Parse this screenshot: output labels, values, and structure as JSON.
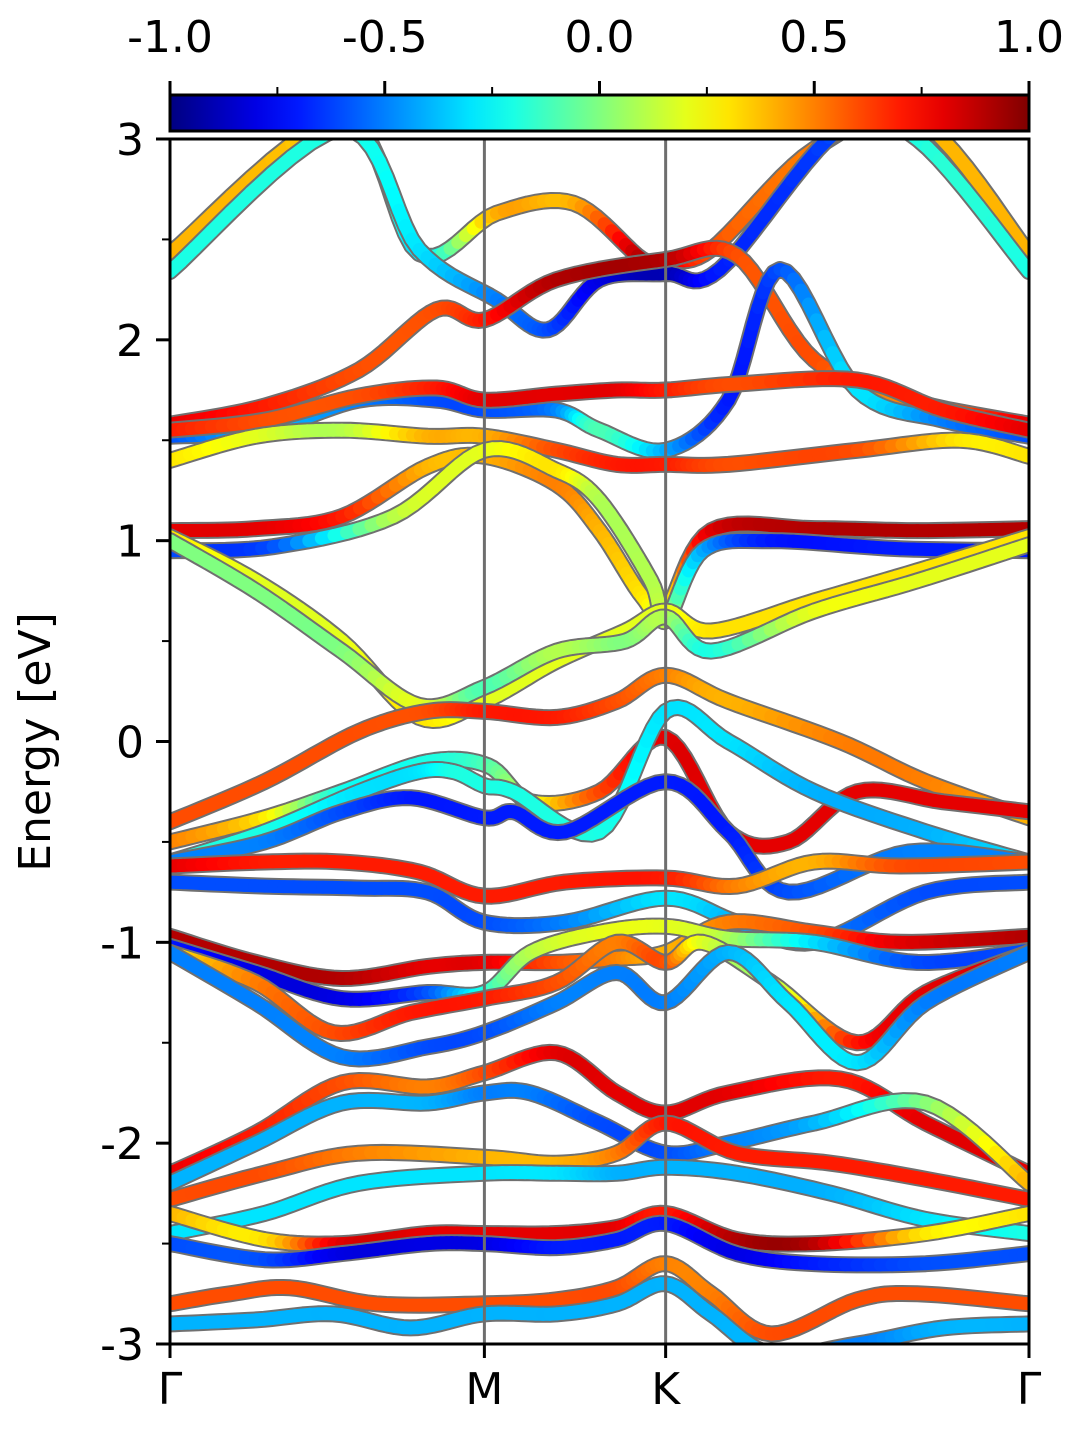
{
  "chart_data": {
    "type": "line",
    "xlabel": "",
    "ylabel": "Energy [eV]",
    "ylim": [
      -3,
      3
    ],
    "y_ticks": [
      3,
      2,
      1,
      0,
      -1,
      -2,
      -3
    ],
    "y_tick_labels": [
      "3",
      "2",
      "1",
      "0",
      "-1",
      "-2",
      "-3"
    ],
    "k_path": [
      "Γ",
      "M",
      "K",
      "Γ"
    ],
    "k_path_positions": [
      0,
      0.366,
      0.577,
      1
    ],
    "colorbar": {
      "ticks": [
        -1.0,
        -0.5,
        0.0,
        0.5,
        1.0
      ],
      "tick_labels": [
        "-1.0",
        "-0.5",
        "0.0",
        "0.5",
        "1.0"
      ],
      "range": [
        -1.0,
        1.0
      ],
      "colormap": "jet"
    },
    "grid": false,
    "series": [
      {
        "x": [
          0,
          0.2,
          0.29,
          0.38,
          0.47,
          0.55,
          0.577,
          0.63,
          0.75,
          0.87,
          1
        ],
        "y": [
          2.43,
          3.1,
          2.43,
          2.63,
          2.68,
          2.4,
          2.4,
          2.45,
          2.95,
          3.1,
          2.43
        ],
        "c": [
          0.4,
          0.3,
          -0.3,
          0.4,
          0.4,
          0.9,
          0.9,
          0.6,
          0.5,
          0.4,
          0.4
        ]
      },
      {
        "x": [
          0,
          0.2,
          0.29,
          0.38,
          0.44,
          0.5,
          0.577,
          0.64,
          0.78,
          0.87,
          1
        ],
        "y": [
          2.34,
          3.05,
          2.45,
          2.2,
          2.05,
          2.3,
          2.33,
          2.35,
          3.05,
          3.0,
          2.34
        ],
        "c": [
          -0.2,
          -0.2,
          -0.3,
          -0.5,
          -0.6,
          -0.8,
          -0.9,
          -0.7,
          -0.6,
          -0.2,
          -0.2
        ]
      },
      {
        "x": [
          0,
          0.11,
          0.22,
          0.31,
          0.366,
          0.45,
          0.577,
          0.66,
          0.75,
          0.86,
          1
        ],
        "y": [
          1.58,
          1.67,
          1.85,
          2.15,
          2.1,
          2.3,
          2.4,
          2.42,
          1.9,
          1.7,
          1.58
        ],
        "c": [
          0.8,
          0.7,
          0.6,
          0.6,
          0.7,
          0.9,
          0.9,
          0.6,
          0.6,
          0.5,
          0.8
        ]
      },
      {
        "x": [
          0,
          0.11,
          0.22,
          0.31,
          0.366,
          0.45,
          0.5,
          0.577,
          0.65,
          0.71,
          0.8,
          0.9,
          1
        ],
        "y": [
          1.52,
          1.55,
          1.7,
          1.7,
          1.65,
          1.65,
          1.55,
          1.45,
          1.7,
          2.35,
          1.75,
          1.6,
          1.52
        ],
        "c": [
          -0.6,
          -0.4,
          -0.5,
          -0.6,
          -0.6,
          -0.5,
          -0.1,
          -0.4,
          -0.7,
          -0.6,
          -0.3,
          -0.5,
          -0.6
        ]
      },
      {
        "x": [
          0,
          0.11,
          0.22,
          0.31,
          0.366,
          0.45,
          0.52,
          0.577,
          0.66,
          0.8,
          0.9,
          1
        ],
        "y": [
          1.55,
          1.6,
          1.72,
          1.76,
          1.7,
          1.73,
          1.75,
          1.75,
          1.78,
          1.8,
          1.65,
          1.55
        ],
        "c": [
          0.7,
          0.6,
          0.6,
          0.7,
          0.8,
          0.8,
          0.8,
          0.7,
          0.6,
          0.7,
          0.7,
          0.8
        ]
      },
      {
        "x": [
          0,
          0.1,
          0.2,
          0.3,
          0.366,
          0.45,
          0.52,
          0.577,
          0.65,
          0.8,
          0.92,
          1
        ],
        "y": [
          1.4,
          1.52,
          1.55,
          1.52,
          1.52,
          1.45,
          1.38,
          1.38,
          1.38,
          1.45,
          1.5,
          1.42
        ],
        "c": [
          0.3,
          0.2,
          0.1,
          0.4,
          0.4,
          0.6,
          0.7,
          0.7,
          0.6,
          0.6,
          0.3,
          0.3
        ]
      },
      {
        "x": [
          0,
          0.1,
          0.2,
          0.3,
          0.366,
          0.45,
          0.5,
          0.55,
          0.577,
          0.63,
          0.75,
          0.87,
          1
        ],
        "y": [
          1.05,
          1.06,
          1.12,
          1.37,
          1.42,
          1.28,
          1.05,
          0.72,
          0.65,
          1.05,
          1.06,
          1.05,
          1.06
        ],
        "c": [
          0.8,
          0.8,
          0.7,
          0.4,
          0.4,
          0.5,
          0.4,
          0.3,
          0.2,
          0.8,
          0.9,
          0.9,
          0.9
        ]
      },
      {
        "x": [
          0,
          0.12,
          0.26,
          0.366,
          0.45,
          0.5,
          0.56,
          0.577,
          0.62,
          0.7,
          0.85,
          1
        ],
        "y": [
          0.95,
          0.97,
          1.12,
          1.45,
          1.35,
          1.2,
          0.8,
          0.6,
          0.95,
          1.0,
          0.96,
          0.95
        ],
        "c": [
          -0.6,
          -0.6,
          0.1,
          0.2,
          0.3,
          0.1,
          0.1,
          0.1,
          -0.4,
          -0.7,
          -0.7,
          -0.7
        ]
      },
      {
        "x": [
          0,
          0.1,
          0.2,
          0.29,
          0.366,
          0.45,
          0.53,
          0.577,
          0.63,
          0.75,
          0.87,
          1
        ],
        "y": [
          1.02,
          0.8,
          0.5,
          0.12,
          0.2,
          0.4,
          0.55,
          0.65,
          0.55,
          0.7,
          0.85,
          1.02
        ],
        "c": [
          0.3,
          0.2,
          0.2,
          0.3,
          0.2,
          0.2,
          0.2,
          0.2,
          0.3,
          0.3,
          0.3,
          0.3
        ]
      },
      {
        "x": [
          0,
          0.1,
          0.2,
          0.29,
          0.366,
          0.45,
          0.53,
          0.577,
          0.63,
          0.75,
          0.87,
          1
        ],
        "y": [
          1.0,
          0.75,
          0.45,
          0.18,
          0.27,
          0.45,
          0.5,
          0.62,
          0.45,
          0.65,
          0.8,
          0.98
        ],
        "c": [
          0.0,
          0.0,
          0.0,
          0.2,
          -0.1,
          0.1,
          0.0,
          0.1,
          -0.2,
          0.2,
          0.2,
          0.2
        ]
      },
      {
        "x": [
          0,
          0.11,
          0.22,
          0.3,
          0.366,
          0.45,
          0.52,
          0.577,
          0.65,
          0.78,
          0.88,
          1
        ],
        "y": [
          -0.4,
          -0.2,
          0.05,
          0.15,
          0.15,
          0.12,
          0.2,
          0.33,
          0.2,
          0.0,
          -0.2,
          -0.38
        ],
        "c": [
          0.6,
          0.6,
          0.6,
          0.6,
          0.7,
          0.7,
          0.6,
          0.5,
          0.4,
          0.5,
          0.5,
          0.4
        ]
      },
      {
        "x": [
          0,
          0.11,
          0.2,
          0.3,
          0.37,
          0.42,
          0.5,
          0.577,
          0.65,
          0.72,
          0.8,
          0.9,
          1
        ],
        "y": [
          -0.5,
          -0.38,
          -0.25,
          -0.1,
          -0.12,
          -0.3,
          -0.25,
          0.02,
          -0.45,
          -0.5,
          -0.25,
          -0.3,
          -0.35
        ],
        "c": [
          0.5,
          0.3,
          -0.2,
          -0.2,
          -0.1,
          0.2,
          0.6,
          0.8,
          0.8,
          0.8,
          0.8,
          0.8,
          0.8
        ]
      },
      {
        "x": [
          0,
          0.11,
          0.22,
          0.29,
          0.33,
          0.366,
          0.4,
          0.5,
          0.577,
          0.65,
          0.75,
          0.88,
          1
        ],
        "y": [
          -0.6,
          -0.45,
          -0.25,
          -0.15,
          -0.15,
          -0.22,
          -0.25,
          -0.45,
          0.15,
          0.0,
          -0.25,
          -0.45,
          -0.6
        ],
        "c": [
          -0.2,
          -0.2,
          -0.3,
          -0.3,
          -0.2,
          -0.2,
          -0.2,
          -0.2,
          -0.3,
          -0.3,
          -0.4,
          -0.4,
          -0.3
        ]
      },
      {
        "x": [
          0,
          0.11,
          0.2,
          0.28,
          0.366,
          0.4,
          0.46,
          0.577,
          0.65,
          0.72,
          0.86,
          1
        ],
        "y": [
          -0.6,
          -0.5,
          -0.35,
          -0.28,
          -0.38,
          -0.35,
          -0.45,
          -0.2,
          -0.45,
          -0.75,
          -0.55,
          -0.6
        ],
        "c": [
          -0.5,
          -0.5,
          -0.6,
          -0.7,
          -0.7,
          -0.7,
          -0.7,
          -0.7,
          -0.7,
          -0.6,
          -0.5,
          -0.5
        ]
      },
      {
        "x": [
          0,
          0.11,
          0.2,
          0.29,
          0.366,
          0.46,
          0.577,
          0.66,
          0.75,
          0.85,
          1
        ],
        "y": [
          -0.62,
          -0.6,
          -0.6,
          -0.65,
          -0.77,
          -0.7,
          -0.68,
          -0.72,
          -0.6,
          -0.62,
          -0.6
        ],
        "c": [
          0.8,
          0.7,
          0.7,
          0.7,
          0.7,
          0.7,
          0.7,
          0.5,
          0.4,
          0.6,
          0.6
        ]
      },
      {
        "x": [
          0,
          0.11,
          0.22,
          0.3,
          0.366,
          0.46,
          0.577,
          0.66,
          0.75,
          0.88,
          1
        ],
        "y": [
          -0.7,
          -0.72,
          -0.73,
          -0.75,
          -0.9,
          -0.9,
          -0.78,
          -0.9,
          -1.0,
          -0.75,
          -0.7
        ],
        "c": [
          -0.6,
          -0.6,
          -0.6,
          -0.6,
          -0.6,
          -0.5,
          -0.3,
          -0.4,
          -0.5,
          -0.6,
          -0.6
        ]
      },
      {
        "x": [
          0,
          0.1,
          0.2,
          0.3,
          0.366,
          0.45,
          0.52,
          0.577,
          0.65,
          0.75,
          0.85,
          1
        ],
        "y": [
          -0.97,
          -1.1,
          -1.18,
          -1.12,
          -1.1,
          -1.1,
          -1.08,
          -1.05,
          -0.9,
          -0.95,
          -1.0,
          -0.97
        ],
        "c": [
          0.9,
          0.9,
          0.9,
          0.8,
          0.8,
          0.6,
          0.5,
          0.4,
          0.5,
          0.6,
          0.8,
          0.9
        ]
      },
      {
        "x": [
          0,
          0.1,
          0.2,
          0.3,
          0.366,
          0.42,
          0.5,
          0.577,
          0.65,
          0.75,
          0.87,
          1
        ],
        "y": [
          -1.02,
          -1.15,
          -1.28,
          -1.25,
          -1.25,
          -1.05,
          -0.95,
          -0.92,
          -0.98,
          -1.0,
          -1.1,
          -1.04
        ],
        "c": [
          -0.7,
          -0.8,
          -0.8,
          -0.6,
          -0.2,
          0.1,
          0.2,
          0.2,
          0.1,
          -0.3,
          -0.6,
          -0.6
        ]
      },
      {
        "x": [
          0,
          0.1,
          0.19,
          0.28,
          0.366,
          0.45,
          0.52,
          0.577,
          0.62,
          0.7,
          0.8,
          0.88,
          1
        ],
        "y": [
          -1.05,
          -1.2,
          -1.45,
          -1.35,
          -1.28,
          -1.2,
          -1.0,
          -1.1,
          -1.0,
          -1.2,
          -1.5,
          -1.25,
          -1.05
        ],
        "c": [
          0.3,
          0.5,
          0.6,
          0.7,
          0.7,
          0.6,
          0.5,
          0.6,
          0.2,
          0.1,
          0.7,
          0.8,
          0.8
        ]
      },
      {
        "x": [
          0,
          0.1,
          0.2,
          0.3,
          0.366,
          0.45,
          0.52,
          0.577,
          0.65,
          0.72,
          0.8,
          0.88,
          1
        ],
        "y": [
          -1.05,
          -1.3,
          -1.57,
          -1.52,
          -1.45,
          -1.3,
          -1.15,
          -1.3,
          -1.05,
          -1.3,
          -1.6,
          -1.3,
          -1.05
        ],
        "c": [
          -0.5,
          -0.5,
          -0.5,
          -0.6,
          -0.6,
          -0.5,
          -0.5,
          -0.5,
          -0.4,
          -0.3,
          -0.3,
          -0.5,
          -0.5
        ]
      },
      {
        "x": [
          0,
          0.1,
          0.2,
          0.3,
          0.366,
          0.45,
          0.52,
          0.577,
          0.65,
          0.78,
          0.88,
          1
        ],
        "y": [
          -2.15,
          -1.95,
          -1.7,
          -1.72,
          -1.65,
          -1.55,
          -1.75,
          -1.85,
          -1.75,
          -1.68,
          -1.9,
          -2.15
        ],
        "c": [
          0.8,
          0.7,
          0.6,
          0.5,
          0.6,
          0.8,
          0.8,
          0.8,
          0.8,
          0.7,
          0.8,
          0.8
        ]
      },
      {
        "x": [
          0,
          0.1,
          0.2,
          0.3,
          0.366,
          0.42,
          0.5,
          0.577,
          0.65,
          0.75,
          0.88,
          1
        ],
        "y": [
          -2.2,
          -2.0,
          -1.8,
          -1.8,
          -1.75,
          -1.75,
          -1.9,
          -2.05,
          -2.0,
          -1.9,
          -1.8,
          -2.2
        ],
        "c": [
          -0.4,
          -0.4,
          -0.4,
          -0.4,
          -0.5,
          -0.5,
          -0.6,
          -0.6,
          -0.5,
          -0.4,
          0.0,
          0.4
        ]
      },
      {
        "x": [
          0,
          0.11,
          0.22,
          0.366,
          0.45,
          0.52,
          0.577,
          0.66,
          0.77,
          0.88,
          1
        ],
        "y": [
          -2.28,
          -2.15,
          -2.05,
          -2.07,
          -2.1,
          -2.05,
          -1.9,
          -2.05,
          -2.1,
          -2.18,
          -2.28
        ],
        "c": [
          0.6,
          0.6,
          0.5,
          0.4,
          0.4,
          0.5,
          0.7,
          0.7,
          0.7,
          0.7,
          0.7
        ]
      },
      {
        "x": [
          0,
          0.11,
          0.22,
          0.366,
          0.45,
          0.52,
          0.577,
          0.66,
          0.77,
          0.88,
          1
        ],
        "y": [
          -2.45,
          -2.35,
          -2.2,
          -2.15,
          -2.15,
          -2.15,
          -2.12,
          -2.15,
          -2.25,
          -2.38,
          -2.45
        ],
        "c": [
          -0.3,
          -0.3,
          -0.3,
          -0.3,
          -0.3,
          -0.4,
          -0.4,
          -0.4,
          -0.4,
          -0.3,
          -0.2
        ]
      },
      {
        "x": [
          0,
          0.11,
          0.2,
          0.3,
          0.366,
          0.45,
          0.52,
          0.577,
          0.66,
          0.75,
          0.88,
          1
        ],
        "y": [
          -2.35,
          -2.48,
          -2.5,
          -2.45,
          -2.45,
          -2.45,
          -2.42,
          -2.35,
          -2.48,
          -2.5,
          -2.45,
          -2.35
        ],
        "c": [
          0.4,
          0.3,
          0.8,
          0.8,
          0.8,
          0.8,
          0.8,
          0.7,
          0.9,
          0.9,
          0.3,
          0.3
        ]
      },
      {
        "x": [
          0,
          0.11,
          0.2,
          0.3,
          0.366,
          0.45,
          0.52,
          0.577,
          0.66,
          0.75,
          0.88,
          1
        ],
        "y": [
          -2.5,
          -2.58,
          -2.55,
          -2.5,
          -2.5,
          -2.52,
          -2.48,
          -2.4,
          -2.55,
          -2.6,
          -2.6,
          -2.55
        ],
        "c": [
          -0.6,
          -0.6,
          -0.8,
          -0.8,
          -0.8,
          -0.7,
          -0.7,
          -0.7,
          -0.8,
          -0.7,
          -0.6,
          -0.6
        ]
      },
      {
        "x": [
          0,
          0.07,
          0.14,
          0.24,
          0.366,
          0.45,
          0.52,
          0.577,
          0.63,
          0.7,
          0.8,
          0.87,
          1
        ],
        "y": [
          -2.8,
          -2.75,
          -2.72,
          -2.8,
          -2.8,
          -2.78,
          -2.72,
          -2.6,
          -2.75,
          -2.95,
          -2.78,
          -2.75,
          -2.8
        ],
        "c": [
          0.6,
          0.6,
          0.6,
          0.6,
          0.6,
          0.6,
          0.6,
          0.5,
          0.5,
          0.6,
          0.6,
          0.6,
          0.6
        ]
      },
      {
        "x": [
          0,
          0.1,
          0.19,
          0.28,
          0.366,
          0.45,
          0.52,
          0.577,
          0.63,
          0.7,
          0.8,
          0.9,
          1
        ],
        "y": [
          -2.9,
          -2.88,
          -2.85,
          -2.92,
          -2.85,
          -2.85,
          -2.8,
          -2.7,
          -2.85,
          -3.05,
          -3.0,
          -2.92,
          -2.9
        ],
        "c": [
          -0.4,
          -0.4,
          -0.4,
          -0.4,
          -0.4,
          -0.4,
          -0.4,
          -0.4,
          -0.4,
          -0.4,
          -0.5,
          -0.4,
          -0.4
        ]
      }
    ]
  }
}
